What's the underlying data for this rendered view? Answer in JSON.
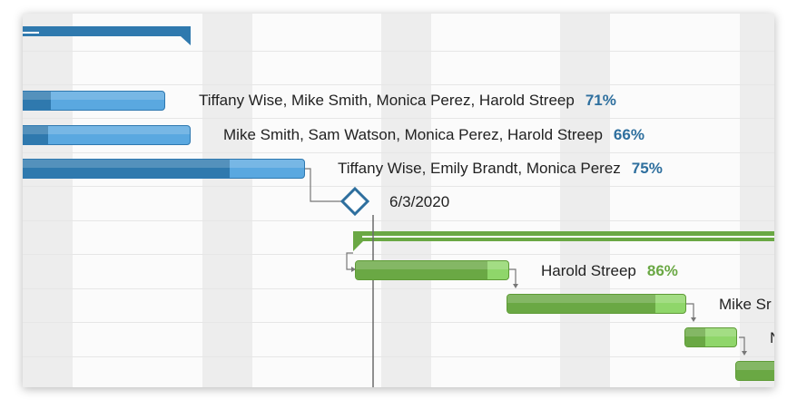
{
  "colors": {
    "blue_progress": "#2f79ae",
    "blue_remaining": "#5aa8e0",
    "green_progress": "#6aa844",
    "green_remaining": "#8fd66a",
    "milestone": "#2e6f9e"
  },
  "tasks": [
    {
      "resources": "Tiffany Wise, Mike Smith, Monica Perez, Harold Streep",
      "percent": "71%"
    },
    {
      "resources": "Mike Smith, Sam Watson, Monica Perez, Harold Streep",
      "percent": "66%"
    },
    {
      "resources": "Tiffany Wise, Emily Brandt, Monica Perez",
      "percent": "75%"
    },
    {
      "resources": "Harold Streep",
      "percent": "86%"
    },
    {
      "resources": "Mike Sr"
    },
    {
      "resources": "N"
    }
  ],
  "milestone": {
    "date": "6/3/2020"
  }
}
